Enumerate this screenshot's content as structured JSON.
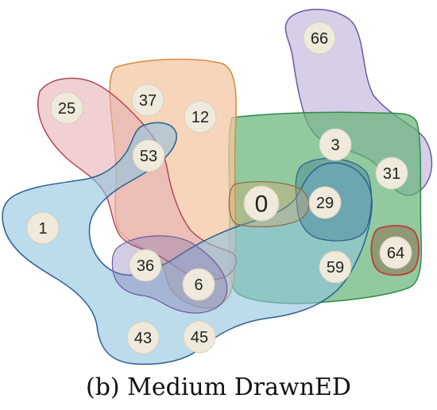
{
  "caption": "(b) Medium DrawnED",
  "colors": {
    "red": "#e6b0b4",
    "orange": "#f3c7a3",
    "purple": "#c9bde0",
    "green": "#62b475",
    "blue": "#8fc3de",
    "node_fill": "#efeadb",
    "outline_red": "#b0485a",
    "outline_orange": "#d68b3b",
    "outline_purple": "#6e5a9e",
    "outline_green": "#2f8a4a",
    "outline_blue": "#2b5f8f"
  },
  "sets": [
    {
      "id": "red-set",
      "color": "red"
    },
    {
      "id": "orange-set",
      "color": "orange"
    },
    {
      "id": "purple-set",
      "color": "purple"
    },
    {
      "id": "green-set",
      "color": "green"
    },
    {
      "id": "blue-set",
      "color": "blue"
    }
  ],
  "nodes": [
    {
      "label": "66"
    },
    {
      "label": "25"
    },
    {
      "label": "37"
    },
    {
      "label": "12"
    },
    {
      "label": "53"
    },
    {
      "label": "3"
    },
    {
      "label": "31"
    },
    {
      "label": "0"
    },
    {
      "label": "29"
    },
    {
      "label": "1"
    },
    {
      "label": "36"
    },
    {
      "label": "64"
    },
    {
      "label": "59"
    },
    {
      "label": "6"
    },
    {
      "label": "43"
    },
    {
      "label": "45"
    }
  ]
}
